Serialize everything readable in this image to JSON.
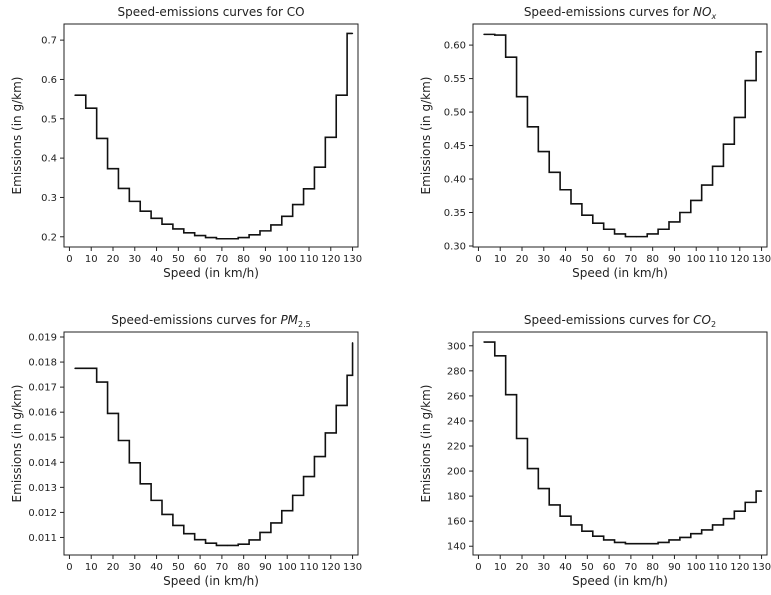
{
  "chart_data": [
    {
      "type": "line",
      "title": "Speed-emissions curves for CO",
      "title_parts": [
        {
          "text": "Speed-emissions curves for CO"
        }
      ],
      "xlabel": "Speed (in km/h)",
      "ylabel": "Emissions (in g/km)",
      "xlim": [
        -2.5,
        132.5
      ],
      "ylim": [
        0.174,
        0.741
      ],
      "xticks": [
        "0",
        "10",
        "20",
        "30",
        "40",
        "50",
        "60",
        "70",
        "80",
        "90",
        "100",
        "110",
        "120",
        "130"
      ],
      "yticks": [
        "0.2",
        "0.3",
        "0.4",
        "0.5",
        "0.6",
        "0.7"
      ],
      "ytick_values": [
        0.2,
        0.3,
        0.4,
        0.5,
        0.6,
        0.7
      ],
      "step": "post",
      "grid": false,
      "series": [
        {
          "x": [
            2.5,
            7.5,
            12.5,
            17.5,
            22.5,
            27.5,
            32.5,
            37.5,
            42.5,
            47.5,
            52.5,
            57.5,
            62.5,
            67.5,
            72.5,
            77.5,
            82.5,
            87.5,
            92.5,
            97.5,
            102.5,
            107.5,
            112.5,
            117.5,
            122.5,
            127.5,
            130
          ],
          "y": [
            0.56,
            0.527,
            0.45,
            0.373,
            0.323,
            0.29,
            0.265,
            0.247,
            0.232,
            0.22,
            0.21,
            0.203,
            0.198,
            0.195,
            0.195,
            0.198,
            0.205,
            0.215,
            0.23,
            0.252,
            0.282,
            0.322,
            0.377,
            0.453,
            0.56,
            0.717,
            0.717
          ]
        }
      ]
    },
    {
      "type": "line",
      "title": "Speed-emissions curves for NOx",
      "title_parts": [
        {
          "text": "Speed-emissions curves for "
        },
        {
          "text": "NO",
          "italic": true
        },
        {
          "text": "x",
          "italic": true,
          "sub": true
        }
      ],
      "xlabel": "Speed (in km/h)",
      "ylabel": "Emissions (in g/km)",
      "xlim": [
        -2.5,
        132.5
      ],
      "ylim": [
        0.2985,
        0.6315
      ],
      "xticks": [
        "0",
        "10",
        "20",
        "30",
        "40",
        "50",
        "60",
        "70",
        "80",
        "90",
        "100",
        "110",
        "120",
        "130"
      ],
      "yticks": [
        "0.30",
        "0.35",
        "0.40",
        "0.45",
        "0.50",
        "0.55",
        "0.60"
      ],
      "ytick_values": [
        0.3,
        0.35,
        0.4,
        0.45,
        0.5,
        0.55,
        0.6
      ],
      "step": "post",
      "grid": false,
      "series": [
        {
          "x": [
            2.5,
            7.5,
            12.5,
            17.5,
            22.5,
            27.5,
            32.5,
            37.5,
            42.5,
            47.5,
            52.5,
            57.5,
            62.5,
            67.5,
            72.5,
            77.5,
            82.5,
            87.5,
            92.5,
            97.5,
            102.5,
            107.5,
            112.5,
            117.5,
            122.5,
            127.5,
            130
          ],
          "y": [
            0.616,
            0.615,
            0.582,
            0.523,
            0.478,
            0.441,
            0.41,
            0.384,
            0.363,
            0.346,
            0.334,
            0.325,
            0.318,
            0.314,
            0.314,
            0.318,
            0.325,
            0.336,
            0.35,
            0.368,
            0.391,
            0.419,
            0.452,
            0.492,
            0.547,
            0.59,
            0.59
          ]
        }
      ]
    },
    {
      "type": "line",
      "title": "Speed-emissions curves for PM2.5",
      "title_parts": [
        {
          "text": "Speed-emissions curves for "
        },
        {
          "text": "PM",
          "italic": true
        },
        {
          "text": "2.5",
          "sub": true
        }
      ],
      "xlabel": "Speed (in km/h)",
      "ylabel": "Emissions (in g/km)",
      "xlim": [
        -2.5,
        132.5
      ],
      "ylim": [
        0.0103,
        0.0192
      ],
      "xticks": [
        "0",
        "10",
        "20",
        "30",
        "40",
        "50",
        "60",
        "70",
        "80",
        "90",
        "100",
        "110",
        "120",
        "130"
      ],
      "yticks": [
        "0.011",
        "0.012",
        "0.013",
        "0.014",
        "0.015",
        "0.016",
        "0.017",
        "0.018",
        "0.019"
      ],
      "ytick_values": [
        0.011,
        0.012,
        0.013,
        0.014,
        0.015,
        0.016,
        0.017,
        0.018,
        0.019
      ],
      "step": "post",
      "grid": false,
      "series": [
        {
          "x": [
            2.5,
            7.5,
            12.5,
            17.5,
            22.5,
            27.5,
            32.5,
            37.5,
            42.5,
            47.5,
            52.5,
            57.5,
            62.5,
            67.5,
            72.5,
            77.5,
            82.5,
            87.5,
            92.5,
            97.5,
            102.5,
            107.5,
            112.5,
            117.5,
            122.5,
            127.5,
            130
          ],
          "y": [
            0.01775,
            0.01775,
            0.0172,
            0.01595,
            0.01487,
            0.01398,
            0.01314,
            0.01248,
            0.01192,
            0.01148,
            0.01115,
            0.01091,
            0.01077,
            0.01068,
            0.01068,
            0.01073,
            0.0109,
            0.0112,
            0.01158,
            0.01207,
            0.01268,
            0.01343,
            0.01423,
            0.01517,
            0.01627,
            0.01747,
            0.01877
          ]
        }
      ]
    },
    {
      "type": "line",
      "title": "Speed-emissions curves for CO2",
      "title_parts": [
        {
          "text": "Speed-emissions curves for "
        },
        {
          "text": "CO",
          "italic": true
        },
        {
          "text": "2",
          "sub": true
        }
      ],
      "xlabel": "Speed (in km/h)",
      "ylabel": "Emissions (in g/km)",
      "xlim": [
        -2.5,
        132.5
      ],
      "ylim": [
        133.0,
        311.0
      ],
      "xticks": [
        "0",
        "10",
        "20",
        "30",
        "40",
        "50",
        "60",
        "70",
        "80",
        "90",
        "100",
        "110",
        "120",
        "130"
      ],
      "yticks": [
        "140",
        "160",
        "180",
        "200",
        "220",
        "240",
        "260",
        "280",
        "300"
      ],
      "ytick_values": [
        140,
        160,
        180,
        200,
        220,
        240,
        260,
        280,
        300
      ],
      "step": "post",
      "grid": false,
      "series": [
        {
          "x": [
            2.5,
            7.5,
            12.5,
            17.5,
            22.5,
            27.5,
            32.5,
            37.5,
            42.5,
            47.5,
            52.5,
            57.5,
            62.5,
            67.5,
            72.5,
            77.5,
            82.5,
            87.5,
            92.5,
            97.5,
            102.5,
            107.5,
            112.5,
            117.5,
            122.5,
            127.5,
            130
          ],
          "y": [
            303,
            292,
            261,
            226,
            202,
            186,
            173,
            164,
            157,
            152,
            148,
            145,
            143,
            142,
            142,
            142,
            143,
            145,
            147,
            150,
            153,
            157,
            162,
            168,
            175,
            184,
            184
          ]
        }
      ]
    }
  ]
}
